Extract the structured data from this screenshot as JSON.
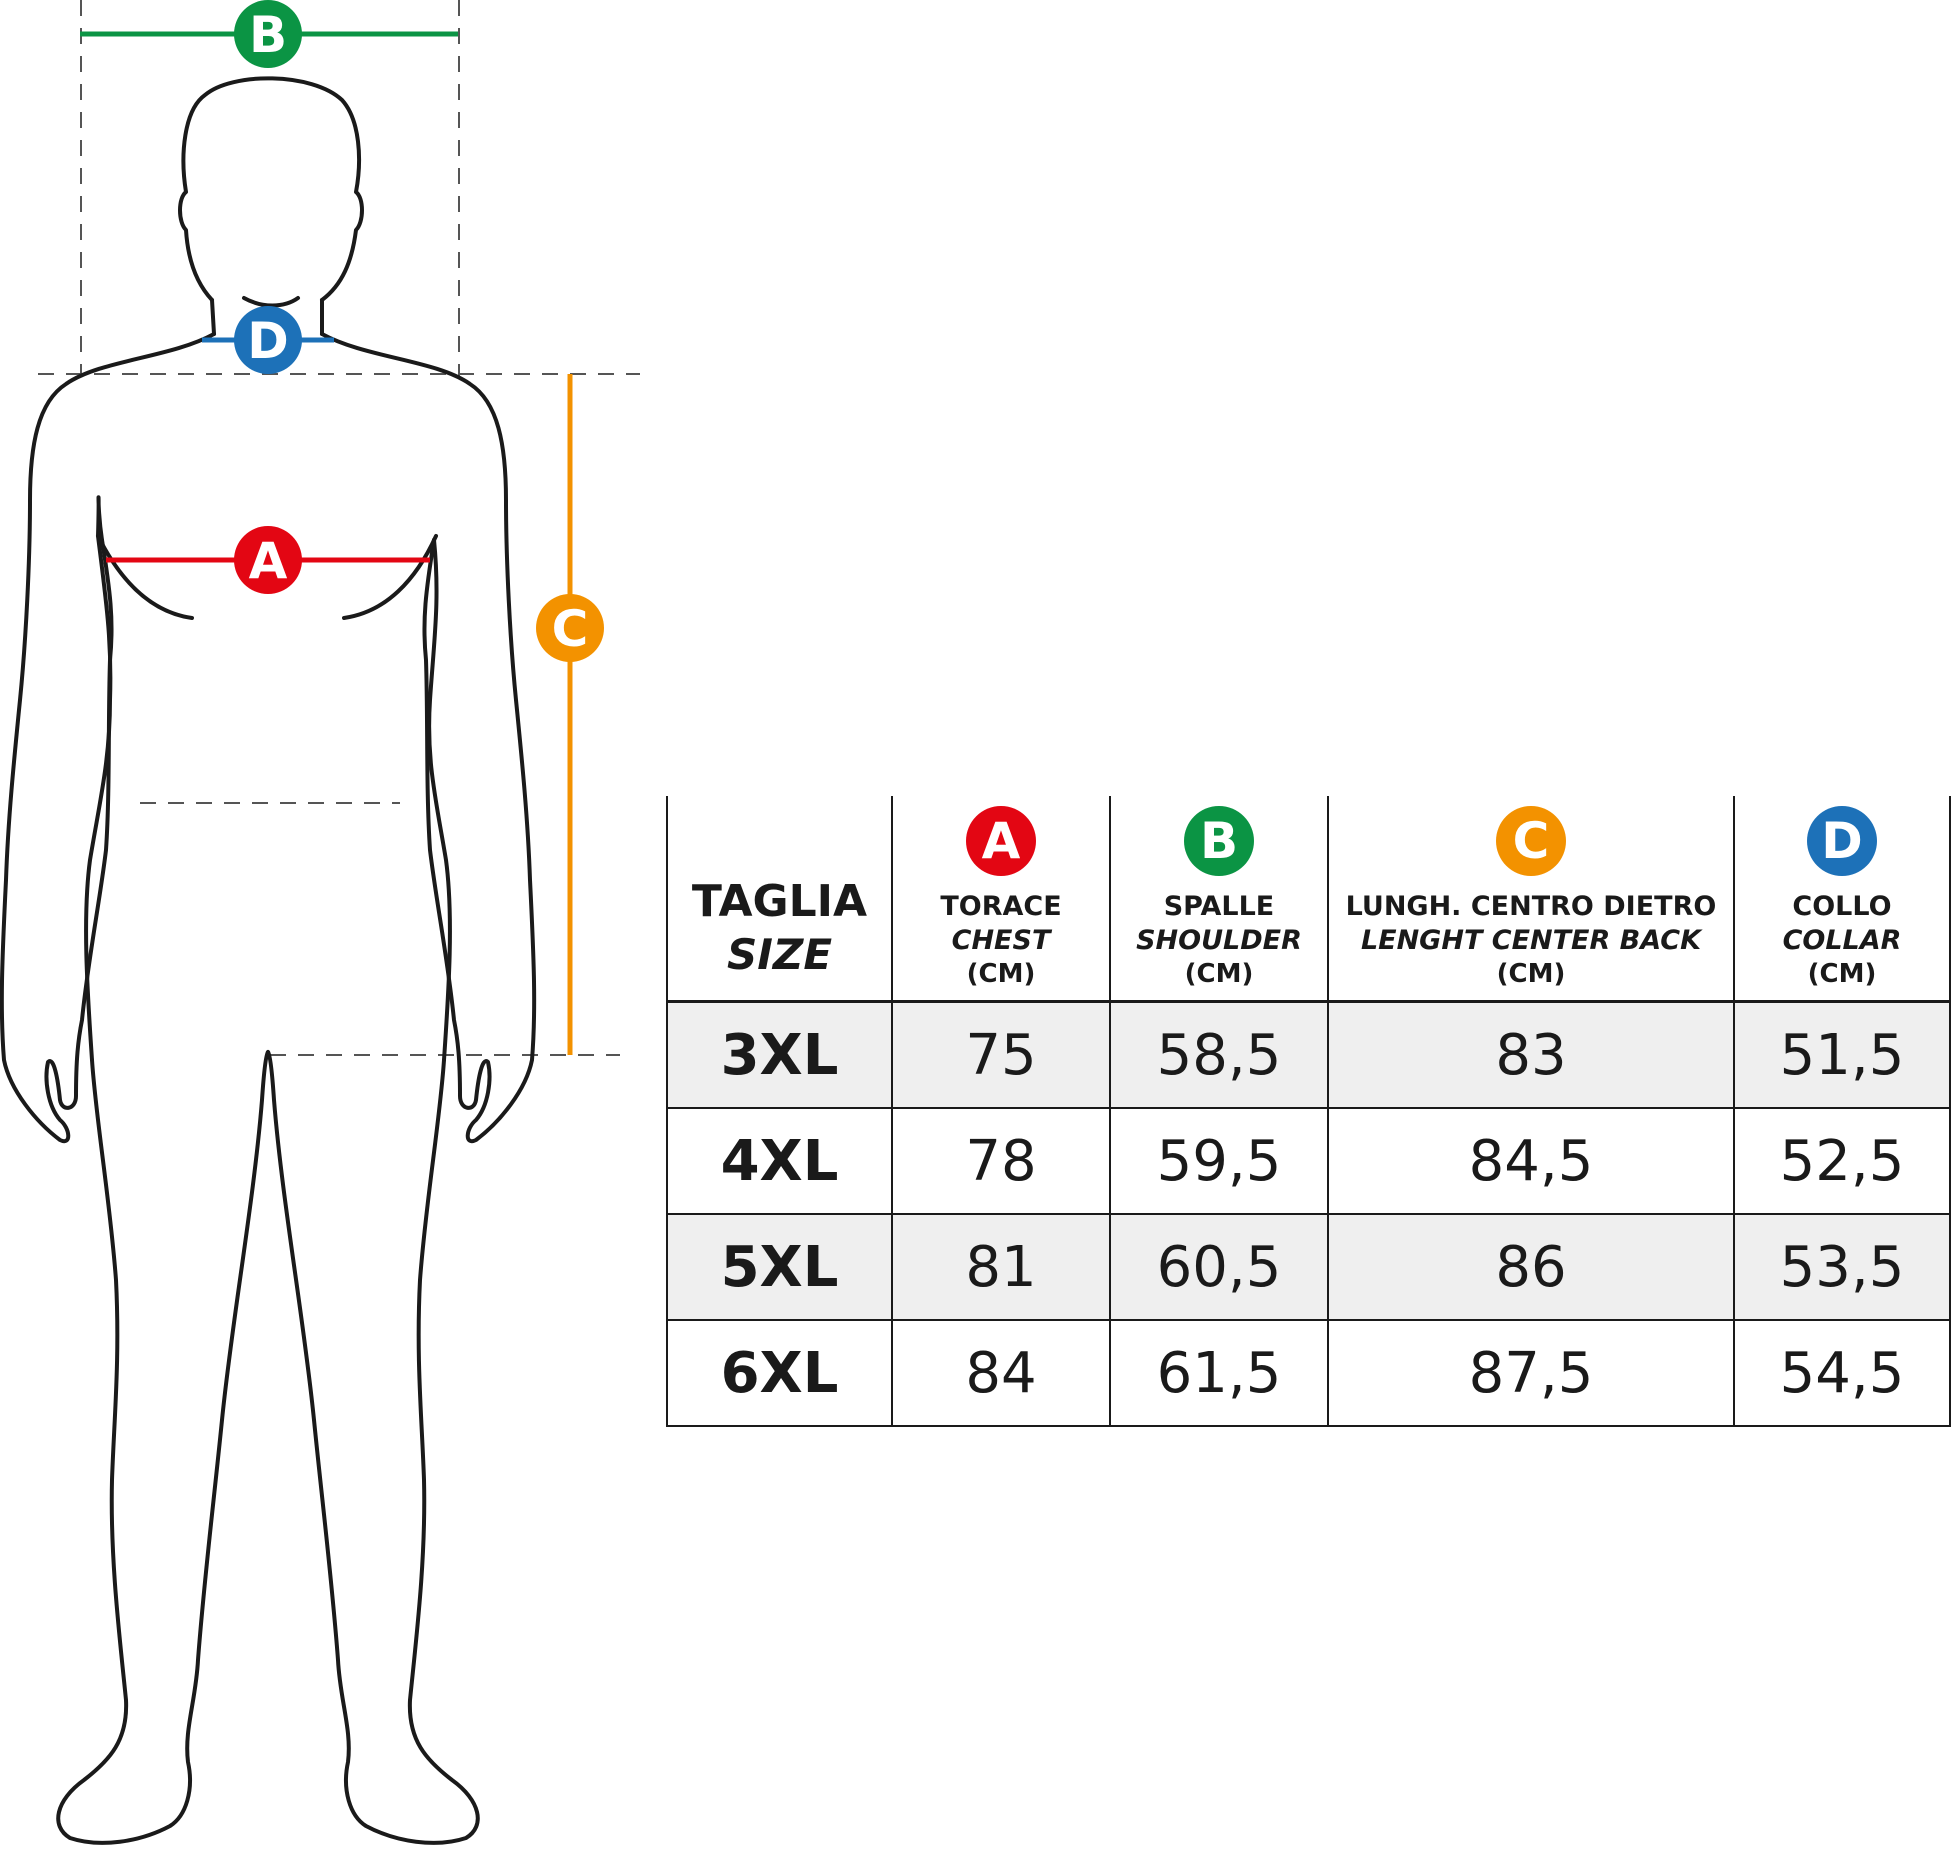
{
  "measures": [
    {
      "letter": "A",
      "color": "#e30613",
      "label_it": "TORACE",
      "label_en": "CHEST",
      "unit": "(CM)"
    },
    {
      "letter": "B",
      "color": "#0b9444",
      "label_it": "SPALLE",
      "label_en": "SHOULDER",
      "unit": "(CM)"
    },
    {
      "letter": "C",
      "color": "#f39200",
      "label_it": "LUNGH. CENTRO DIETRO",
      "label_en": "LENGHT CENTER BACK",
      "unit": "(CM)"
    },
    {
      "letter": "D",
      "color": "#1d71b8",
      "label_it": "COLLO",
      "label_en": "COLLAR",
      "unit": "(CM)"
    }
  ],
  "table": {
    "size_header_it": "TAGLIA",
    "size_header_en": "SIZE",
    "rows": [
      {
        "size": "3XL",
        "values": [
          "75",
          "58,5",
          "83",
          "51,5"
        ]
      },
      {
        "size": "4XL",
        "values": [
          "78",
          "59,5",
          "84,5",
          "52,5"
        ]
      },
      {
        "size": "5XL",
        "values": [
          "81",
          "60,5",
          "86",
          "53,5"
        ]
      },
      {
        "size": "6XL",
        "values": [
          "84",
          "61,5",
          "87,5",
          "54,5"
        ]
      }
    ]
  }
}
